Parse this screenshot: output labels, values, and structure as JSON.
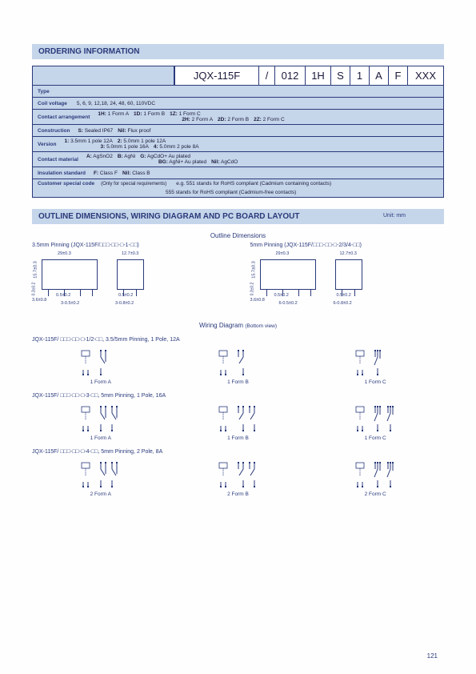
{
  "ordering": {
    "title": "ORDERING INFORMATION",
    "parts": [
      "JQX-115F",
      "/",
      "012",
      "1H",
      "S",
      "1",
      "A",
      "F",
      "XXX"
    ],
    "part_widths": [
      105,
      20,
      38,
      32,
      24,
      24,
      24,
      24,
      45
    ],
    "header_bg": "#c5d5ea",
    "header_text": "#2a3a7a",
    "rows": [
      {
        "label": "Type",
        "content": ""
      },
      {
        "label": "Coil voltage",
        "content": "5, 6, 9, 12,18, 24, 48, 60, 110VDC"
      },
      {
        "label": "Contact arrangement",
        "pairs": [
          {
            "k": "1H:",
            "v": "1 Form A"
          },
          {
            "k": "1D:",
            "v": "1 Form B"
          },
          {
            "k": "1Z:",
            "v": "1 Form C"
          },
          {
            "k": "2H:",
            "v": "2 Form A"
          },
          {
            "k": "2D:",
            "v": "2 Form B"
          },
          {
            "k": "2Z:",
            "v": "2 Form C"
          }
        ],
        "br_after": 3
      },
      {
        "label": "Construction",
        "pairs": [
          {
            "k": "S:",
            "v": "Sealed  IP67"
          },
          {
            "k": "Nil:",
            "v": "Flux proof"
          }
        ]
      },
      {
        "label": "Version",
        "pairs": [
          {
            "k": "1:",
            "v": "3.5mm 1 pole 12A"
          },
          {
            "k": "2:",
            "v": "5.0mm 1 pole  12A"
          },
          {
            "k": "3:",
            "v": "5.0mm 1 pole 16A"
          },
          {
            "k": "4:",
            "v": "5.0mm 2 pole 8A"
          }
        ],
        "br_after": 2
      },
      {
        "label": "Contact material",
        "pairs": [
          {
            "k": "A:",
            "v": "AgSnO2"
          },
          {
            "k": "B:",
            "v": "AgNi"
          },
          {
            "k": "G:",
            "v": "AgCdO+ Au plated"
          },
          {
            "k": "BG:",
            "v": "AgNi+ Au plated"
          },
          {
            "k": "Nil:",
            "v": "AgCdO"
          }
        ],
        "br_after": 3
      },
      {
        "label": "Insulation standard",
        "pairs": [
          {
            "k": "F:",
            "v": "Class F"
          },
          {
            "k": "Nil:",
            "v": "Class B"
          }
        ]
      },
      {
        "label": "Customer special code",
        "sub": "(Only for special requirements)",
        "content": "e.g. 551 stands for RoHS compliant (Cadmium containing contacts)",
        "content2": "555 stands for RoHS compliant (Cadmium-free contacts)"
      }
    ]
  },
  "outline": {
    "title": "OUTLINE DIMENSIONS, WIRING DIAGRAM AND PC BOARD LAYOUT",
    "unit": "Unit: mm",
    "subtitle": "Outline Dimensions",
    "groups": [
      {
        "title": "3.5mm  Pinning  (JQX-115F/□□□-□□-□-1-□□)",
        "dims": {
          "w": "29±0.3",
          "h": "15.7±0.3",
          "d": "12.7±0.3",
          "p": "3.6±0.8",
          "q": "0.5±0.2",
          "r": "3-0.5±0.2",
          "s": "3-0.8±0.2",
          "t": "0.3±0.2"
        }
      },
      {
        "title": "5mm Pinning  (JQX-115F/□□□-□□-□-2/3/4-□□)",
        "dims": {
          "w": "29±0.3",
          "h": "15.7±0.3",
          "d": "12.7±0.3",
          "p": "3.6±0.8",
          "q": "0.5±0.2",
          "r": "6-0.5±0.2",
          "s": "6-0.8±0.2",
          "t": "0.3±0.2"
        }
      }
    ]
  },
  "wiring": {
    "title": "Wiring Diagram",
    "sub": "(Bottom view)",
    "groups": [
      {
        "title": "JQX-115F/ □□□-□□-□-1/2-□□,  3.5/5mm Pinning,  1 Pole,  12A",
        "forms": [
          "1 Form A",
          "1 Form B",
          "1 Form C"
        ],
        "type": "1pole"
      },
      {
        "title": "JQX-115F/ □□□-□□-□-3-□□,   5mm Pinning,  1 Pole,  16A",
        "forms": [
          "1 Form A",
          "1 Form B",
          "1 Form C"
        ],
        "type": "1pole16"
      },
      {
        "title": "JQX-115F/ □□□-□□-□-4-□□,   5mm Pinning,  2 Pole,  8A",
        "forms": [
          "2 Form A",
          "2 Form B",
          "2 Form C"
        ],
        "type": "2pole"
      }
    ]
  },
  "page_number": "121",
  "colors": {
    "primary": "#2a3a7a",
    "bg_blue": "#c5d5ea",
    "page_bg": "#fefeff"
  }
}
